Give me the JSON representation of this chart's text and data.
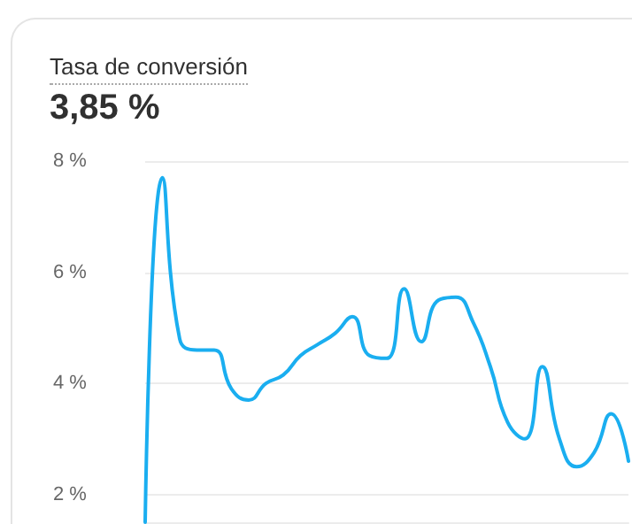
{
  "chart_data": {
    "type": "line",
    "title": "Tasa de conversión",
    "subtitle": "3,85 %",
    "categories": [
      null,
      null,
      null,
      null,
      null,
      null,
      null,
      null,
      null,
      null,
      null,
      null,
      null,
      null,
      null,
      null,
      null,
      null,
      null,
      null,
      null,
      null,
      null,
      null,
      null,
      null,
      null,
      null,
      null
    ],
    "series": [
      {
        "color": "#1aaef0",
        "values": [
          1.5,
          7.7,
          4.8,
          4.6,
          4.6,
          3.9,
          3.7,
          4.0,
          4.15,
          4.5,
          4.7,
          4.9,
          5.2,
          4.5,
          4.45,
          5.7,
          4.75,
          5.5,
          5.55,
          5.1,
          4.3,
          3.3,
          3.0,
          4.3,
          3.0,
          2.5,
          2.75,
          3.45,
          2.6
        ]
      }
    ],
    "ylim": [
      1.5,
      8
    ],
    "yticks": [
      {
        "value": 2,
        "label": "2 %"
      },
      {
        "value": 4,
        "label": "4 %"
      },
      {
        "value": 6,
        "label": "6 %"
      },
      {
        "value": 8,
        "label": "8 %"
      }
    ],
    "grid": "y",
    "marker": "none",
    "line_style": "solid",
    "tick_labels": "y"
  }
}
